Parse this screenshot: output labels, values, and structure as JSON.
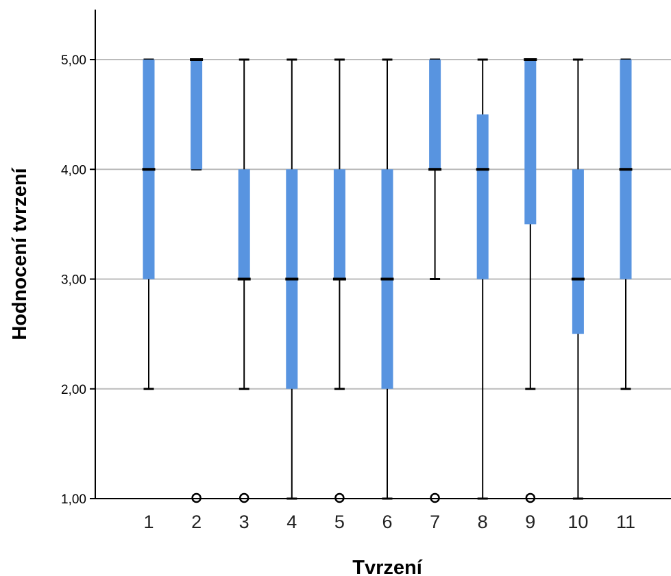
{
  "chart_data": {
    "type": "boxplot",
    "xlabel": "Tvrzení",
    "ylabel": "Hodnocení tvrzení",
    "ylim": [
      1,
      5
    ],
    "yticks": [
      1,
      2,
      3,
      4,
      5
    ],
    "ytick_labels": [
      "1,00",
      "2,00",
      "3,00",
      "4,00",
      "5,00"
    ],
    "grid": "horizontal",
    "colors": {
      "box": "#5894E0",
      "median": "#000000",
      "whisker": "#000000",
      "grid": "#BBBBBB",
      "axis": "#000000"
    },
    "categories": [
      "1",
      "2",
      "3",
      "4",
      "5",
      "6",
      "7",
      "8",
      "9",
      "10",
      "11"
    ],
    "boxes": [
      {
        "category": "1",
        "whisker_low": 2,
        "q1": 3,
        "median": 4,
        "q3": 5,
        "whisker_high": 5,
        "outliers": []
      },
      {
        "category": "2",
        "whisker_low": 4,
        "q1": 4,
        "median": 5,
        "q3": 5,
        "whisker_high": 5,
        "outliers": [
          1
        ]
      },
      {
        "category": "3",
        "whisker_low": 2,
        "q1": 3,
        "median": 3,
        "q3": 4,
        "whisker_high": 5,
        "outliers": [
          1
        ]
      },
      {
        "category": "4",
        "whisker_low": 1,
        "q1": 2,
        "median": 3,
        "q3": 4,
        "whisker_high": 5,
        "outliers": []
      },
      {
        "category": "5",
        "whisker_low": 2,
        "q1": 3,
        "median": 3,
        "q3": 4,
        "whisker_high": 5,
        "outliers": [
          1
        ]
      },
      {
        "category": "6",
        "whisker_low": 1,
        "q1": 2,
        "median": 3,
        "q3": 4,
        "whisker_high": 5,
        "outliers": []
      },
      {
        "category": "7",
        "whisker_low": 3,
        "q1": 4,
        "median": 4,
        "q3": 5,
        "whisker_high": 5,
        "outliers": [
          1
        ]
      },
      {
        "category": "8",
        "whisker_low": 1,
        "q1": 3,
        "median": 4,
        "q3": 4.5,
        "whisker_high": 5,
        "outliers": []
      },
      {
        "category": "9",
        "whisker_low": 2,
        "q1": 3.5,
        "median": 5,
        "q3": 5,
        "whisker_high": 5,
        "outliers": [
          1
        ]
      },
      {
        "category": "10",
        "whisker_low": 1,
        "q1": 2.5,
        "median": 3,
        "q3": 4,
        "whisker_high": 5,
        "outliers": []
      },
      {
        "category": "11",
        "whisker_low": 2,
        "q1": 3,
        "median": 4,
        "q3": 5,
        "whisker_high": 5,
        "outliers": []
      }
    ]
  }
}
